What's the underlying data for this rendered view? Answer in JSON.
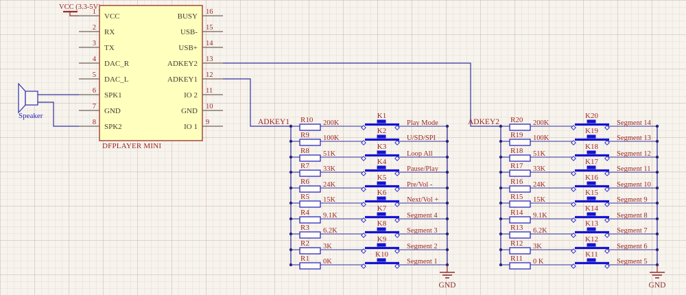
{
  "colors": {
    "wire": "#32329e",
    "symbol": "#2a2ac4",
    "key": "#1414cf",
    "maroon": "#8d2e2e",
    "pin": "#6e635b",
    "dot": "#23237e",
    "ic_fill": "#ffffbe",
    "ic_border": "#9c3b33",
    "text_red": "#9b2721",
    "text_dark": "#453b31",
    "speaker_blue": "#3a3ab4"
  },
  "power": {
    "label": "VCC (3.3-5V)"
  },
  "speaker": {
    "label": "Speaker"
  },
  "ic": {
    "title": "DFPLAYER MINI",
    "left_pins": [
      {
        "num": "1",
        "name": "VCC"
      },
      {
        "num": "2",
        "name": "RX"
      },
      {
        "num": "3",
        "name": "TX"
      },
      {
        "num": "4",
        "name": "DAC_R"
      },
      {
        "num": "5",
        "name": "DAC_L"
      },
      {
        "num": "6",
        "name": "SPK1"
      },
      {
        "num": "7",
        "name": "GND"
      },
      {
        "num": "8",
        "name": "SPK2"
      }
    ],
    "right_pins": [
      {
        "num": "16",
        "name": "BUSY"
      },
      {
        "num": "15",
        "name": "USB-"
      },
      {
        "num": "14",
        "name": "USB+"
      },
      {
        "num": "13",
        "name": "ADKEY2"
      },
      {
        "num": "12",
        "name": "ADKEY1"
      },
      {
        "num": "11",
        "name": "IO 2"
      },
      {
        "num": "10",
        "name": "GND"
      },
      {
        "num": "9",
        "name": "IO 1"
      }
    ]
  },
  "ladders": [
    {
      "net": "ADKEY1",
      "gnd": "GND",
      "rows": [
        {
          "ref": "R10",
          "value": "200K",
          "key": "K1",
          "label": "Play Mode"
        },
        {
          "ref": "R9",
          "value": "100K",
          "key": "K2",
          "label": "U/SD/SPI"
        },
        {
          "ref": "R8",
          "value": "51K",
          "key": "K3",
          "label": "Loop All"
        },
        {
          "ref": "R7",
          "value": "33K",
          "key": "K4",
          "label": "Pause/Play"
        },
        {
          "ref": "R6",
          "value": "24K",
          "key": "K5",
          "label": "Pre/Vol -"
        },
        {
          "ref": "R5",
          "value": "15K",
          "key": "K6",
          "label": "Next/Vol +"
        },
        {
          "ref": "R4",
          "value": "9.1K",
          "key": "K7",
          "label": "Segment 4"
        },
        {
          "ref": "R3",
          "value": "6.2K",
          "key": "K8",
          "label": "Segment 3"
        },
        {
          "ref": "R2",
          "value": "3K",
          "key": "K9",
          "label": "Segment 2"
        },
        {
          "ref": "R1",
          "value": "0K",
          "key": "K10",
          "label": "Segment 1"
        }
      ]
    },
    {
      "net": "ADKEY2",
      "gnd": "GND",
      "rows": [
        {
          "ref": "R20",
          "value": "200K",
          "key": "K20",
          "label": "Segment 14"
        },
        {
          "ref": "R19",
          "value": "100K",
          "key": "K19",
          "label": "Segment 13"
        },
        {
          "ref": "R18",
          "value": "51K",
          "key": "K18",
          "label": "Segment 12"
        },
        {
          "ref": "R17",
          "value": "33K",
          "key": "K17",
          "label": "Segment 11"
        },
        {
          "ref": "R16",
          "value": "24K",
          "key": "K16",
          "label": "Segment 10"
        },
        {
          "ref": "R15",
          "value": "15K",
          "key": "K15",
          "label": "Segment 9"
        },
        {
          "ref": "R14",
          "value": "9.1K",
          "key": "K14",
          "label": "Segment 8"
        },
        {
          "ref": "R13",
          "value": "6.2K",
          "key": "K13",
          "label": "Segment 7"
        },
        {
          "ref": "R12",
          "value": "3K",
          "key": "K12",
          "label": "Segment 6"
        },
        {
          "ref": "R11",
          "value": "0 K",
          "key": "K11",
          "label": "Segment 5"
        }
      ]
    }
  ]
}
